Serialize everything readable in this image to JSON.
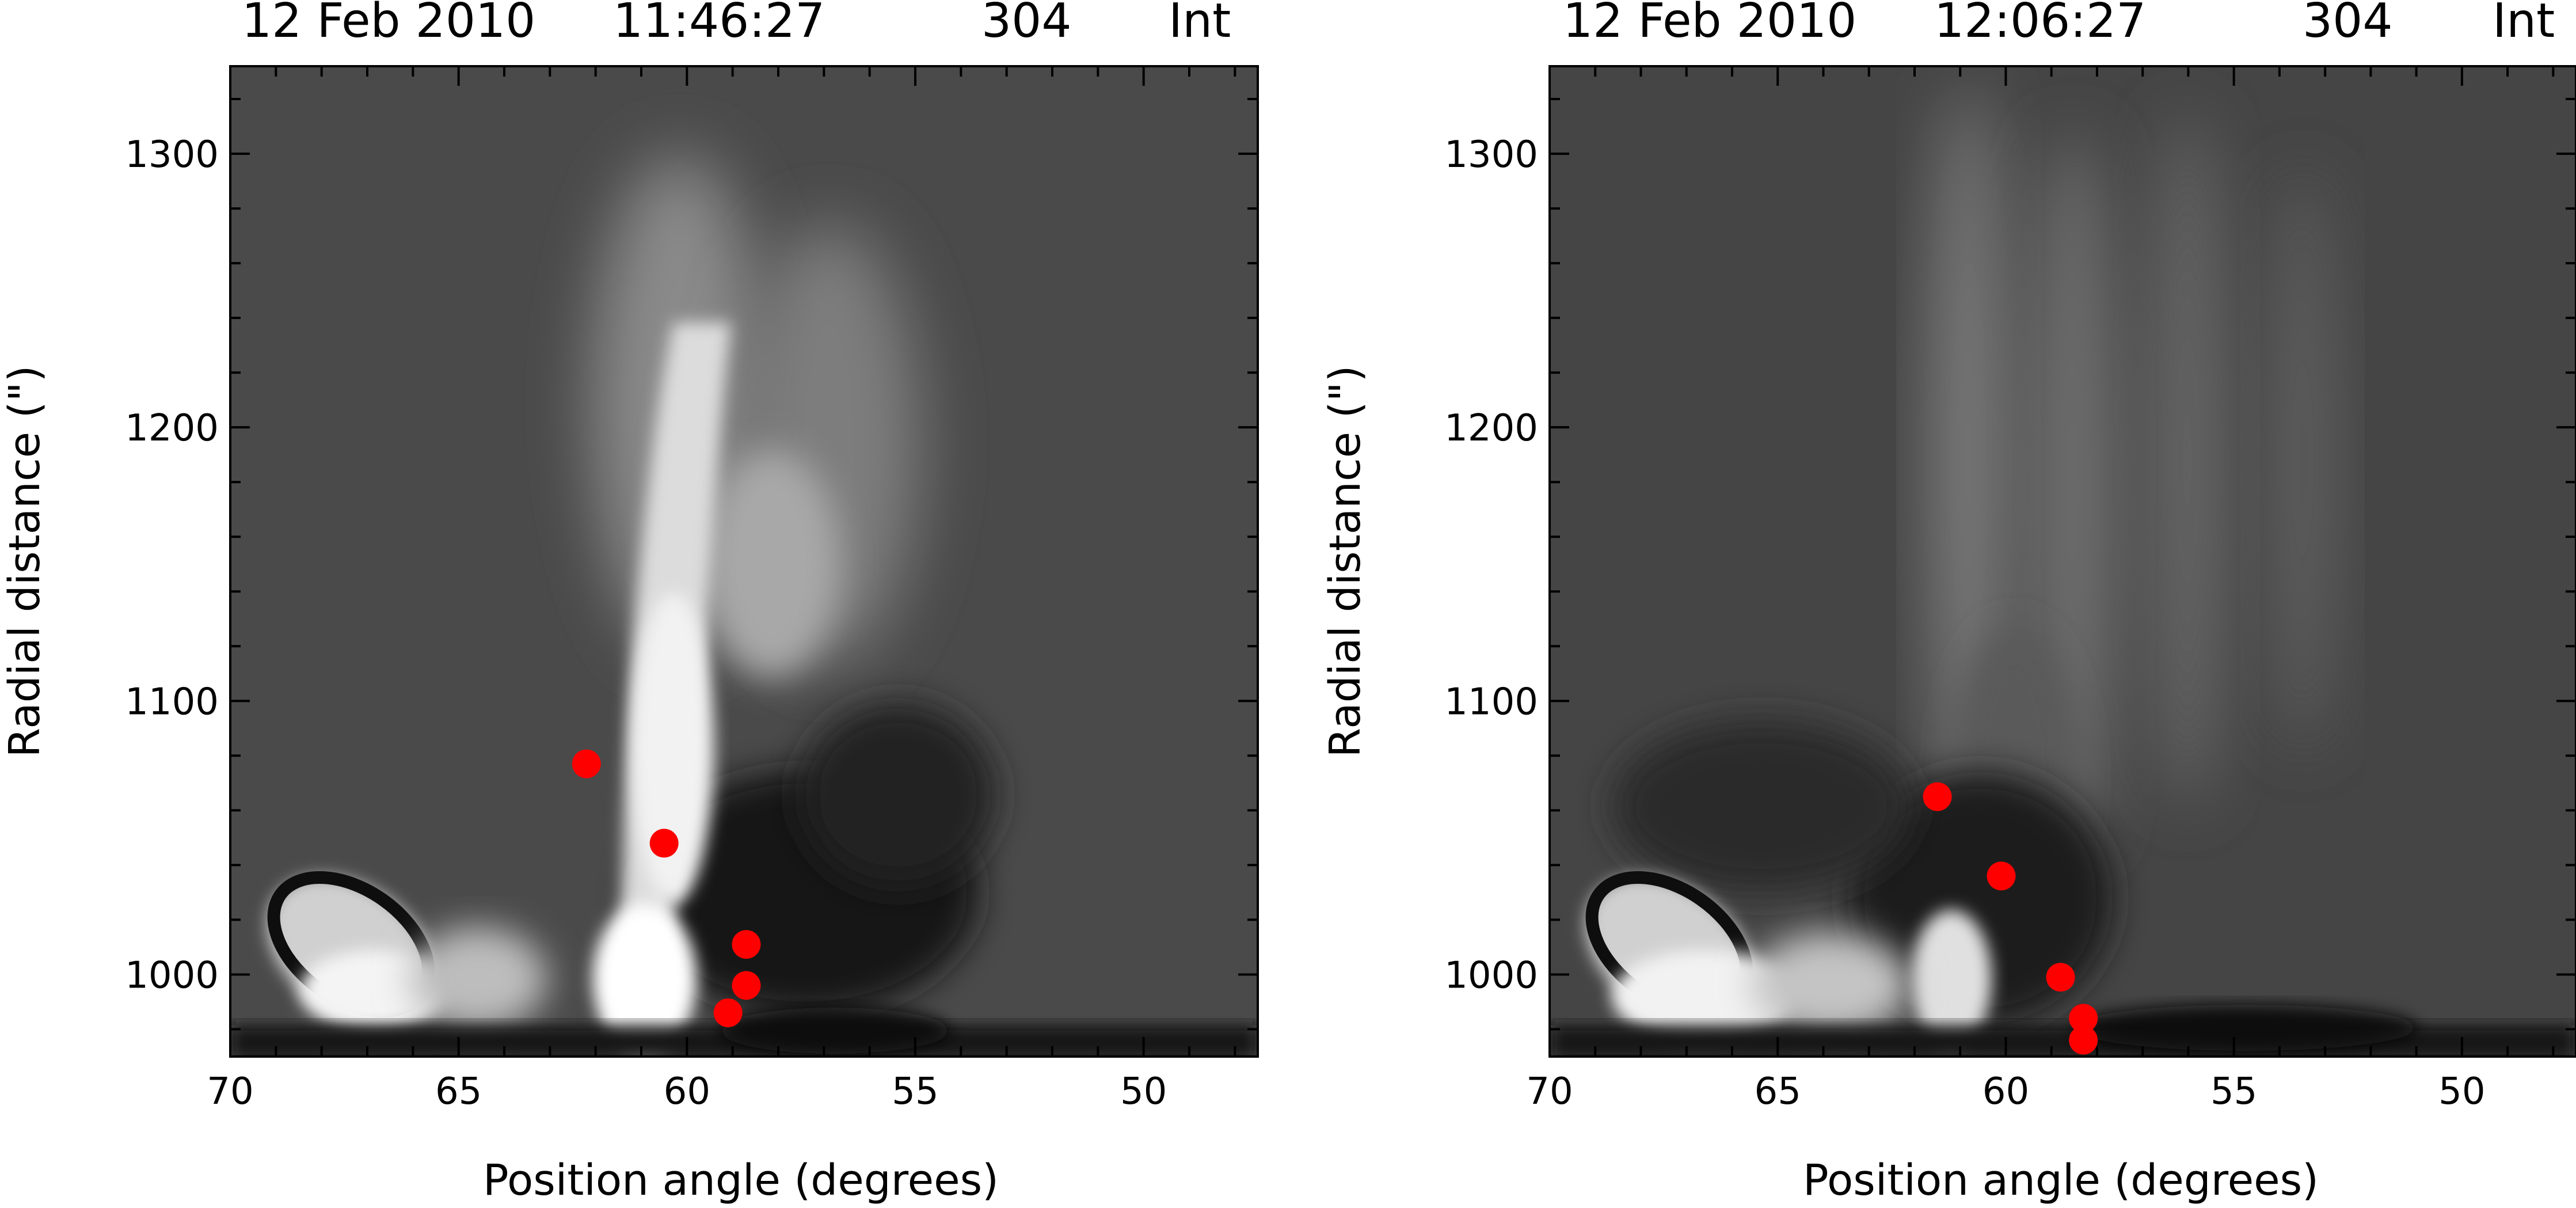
{
  "chart_data": [
    {
      "type": "scatter",
      "title": {
        "date": "12 Feb 2010",
        "time": "11:46:27",
        "channel": "304",
        "mode": "Int"
      },
      "xlabel": "Position angle (degrees)",
      "ylabel": "Radial distance (\")",
      "xlim": [
        70,
        47.5
      ],
      "ylim": [
        970,
        1332
      ],
      "xticks": [
        70,
        65,
        60,
        55,
        50
      ],
      "yticks": [
        1000,
        1100,
        1200,
        1300
      ],
      "background": "grayscale running-difference image",
      "marker_color": "#ff0000",
      "points": [
        {
          "x": 62.2,
          "y": 1077
        },
        {
          "x": 60.5,
          "y": 1048
        },
        {
          "x": 58.7,
          "y": 1011
        },
        {
          "x": 58.7,
          "y": 996
        },
        {
          "x": 59.1,
          "y": 986
        }
      ]
    },
    {
      "type": "scatter",
      "title": {
        "date": "12 Feb 2010",
        "time": "12:06:27",
        "channel": "304",
        "mode": "Int"
      },
      "xlabel": "Position angle (degrees)",
      "ylabel": "Radial distance (\")",
      "xlim": [
        70,
        47.5
      ],
      "ylim": [
        970,
        1332
      ],
      "xticks": [
        70,
        65,
        60,
        55,
        50
      ],
      "yticks": [
        1000,
        1100,
        1200,
        1300
      ],
      "background": "grayscale running-difference image",
      "marker_color": "#ff0000",
      "points": [
        {
          "x": 61.5,
          "y": 1065
        },
        {
          "x": 60.1,
          "y": 1036
        },
        {
          "x": 58.8,
          "y": 999
        },
        {
          "x": 58.3,
          "y": 984
        },
        {
          "x": 58.3,
          "y": 976
        }
      ]
    }
  ]
}
